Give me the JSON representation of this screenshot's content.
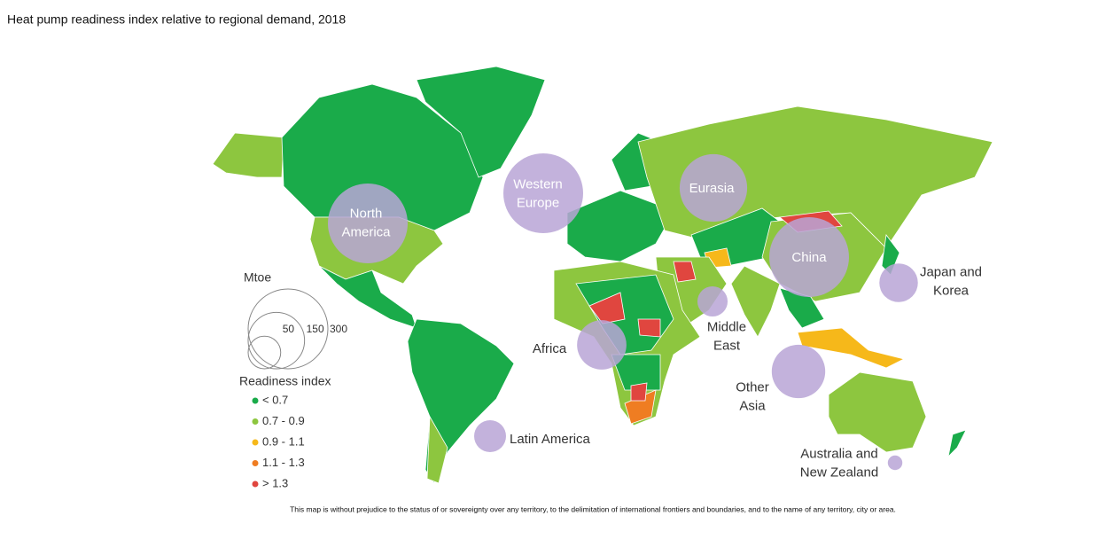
{
  "title": "Heat pump readiness index relative to regional demand, 2018",
  "size_legend": {
    "title": "Mtoe",
    "values": [
      50,
      150,
      300
    ]
  },
  "color_legend": {
    "title": "Readiness index",
    "classes": [
      {
        "label": "< 0.7",
        "color": "#1aab4a"
      },
      {
        "label": "0.7 - 0.9",
        "color": "#8dc63f"
      },
      {
        "label": "0.9 - 1.1",
        "color": "#f6b81a"
      },
      {
        "label": "1.1 - 1.3",
        "color": "#ef7d22"
      },
      {
        "label": "> 1.3",
        "color": "#e0463f"
      }
    ]
  },
  "regions": [
    {
      "label": [
        "North",
        "America"
      ],
      "demand": 300
    },
    {
      "label": [
        "Western",
        "Europe"
      ],
      "demand": 300
    },
    {
      "label": [
        "Eurasia"
      ],
      "demand": 215
    },
    {
      "label": [
        "China"
      ],
      "demand": 300
    },
    {
      "label": [
        "Japan and",
        "Korea"
      ],
      "demand": 70
    },
    {
      "label": [
        "Middle",
        "East"
      ],
      "demand": 43
    },
    {
      "label": [
        "Africa"
      ],
      "demand": 115
    },
    {
      "label": [
        "Other",
        "Asia"
      ],
      "demand": 135
    },
    {
      "label": [
        "Latin America"
      ],
      "demand": 48
    },
    {
      "label": [
        "Australia and",
        "New Zealand"
      ],
      "demand": 10
    }
  ],
  "bubble_color": "#b9a4d6",
  "disclaimer": "This map is without prejudice to the status of or sovereignty over any territory, to the delimitation of international frontiers and boundaries, and to the name of any territory, city or area."
}
